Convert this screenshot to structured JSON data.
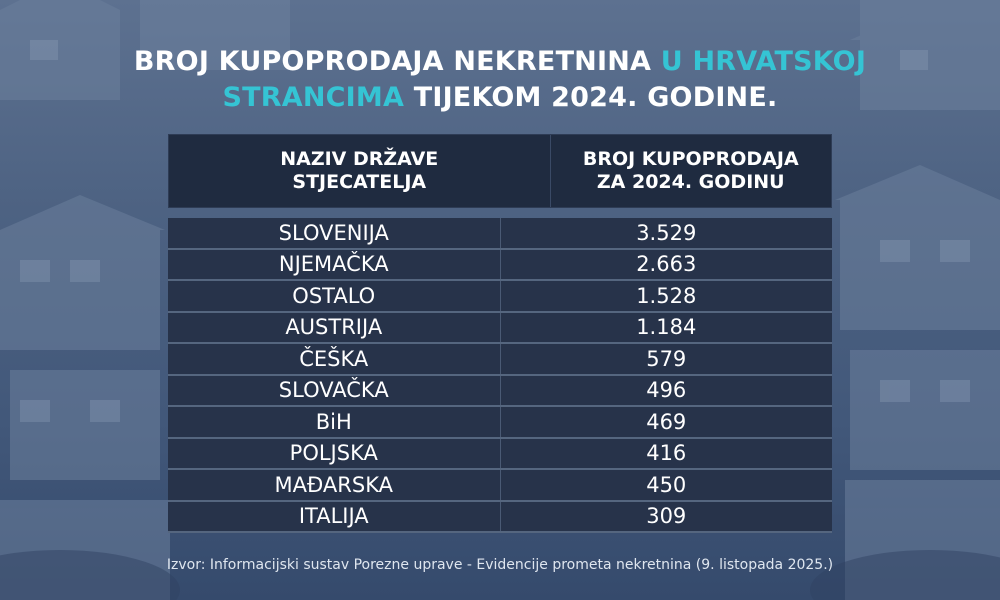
{
  "title": {
    "line1_white": "BROJ KUPOPRODAJA NEKRETNINA",
    "line1_accent": "U HRVATSKOJ",
    "line2_accent": "STRANCIMA",
    "line2_white": "TIJEKOM 2024. GODINE."
  },
  "colors": {
    "accent": "#35c4d4",
    "header_bg": "#1f2b40",
    "row_bg": "#27334a"
  },
  "chart_data": {
    "type": "table",
    "columns": [
      "NAZIV DRŽAVE STJECATELJA",
      "BROJ KUPOPRODAJA ZA 2024. GODINU"
    ],
    "rows": [
      {
        "country": "SLOVENIJA",
        "value": "3.529"
      },
      {
        "country": "NJEMAČKA",
        "value": "2.663"
      },
      {
        "country": "OSTALO",
        "value": "1.528"
      },
      {
        "country": "AUSTRIJA",
        "value": "1.184"
      },
      {
        "country": "ČEŠKA",
        "value": "579"
      },
      {
        "country": "SLOVAČKA",
        "value": "496"
      },
      {
        "country": "BiH",
        "value": "469"
      },
      {
        "country": "POLJSKA",
        "value": "416"
      },
      {
        "country": "MAĐARSKA",
        "value": "450"
      },
      {
        "country": "ITALIJA",
        "value": "309"
      }
    ]
  },
  "source": "Izvor: Informacijski sustav Porezne uprave - Evidencije prometa nekretnina (9. listopada 2025.)"
}
